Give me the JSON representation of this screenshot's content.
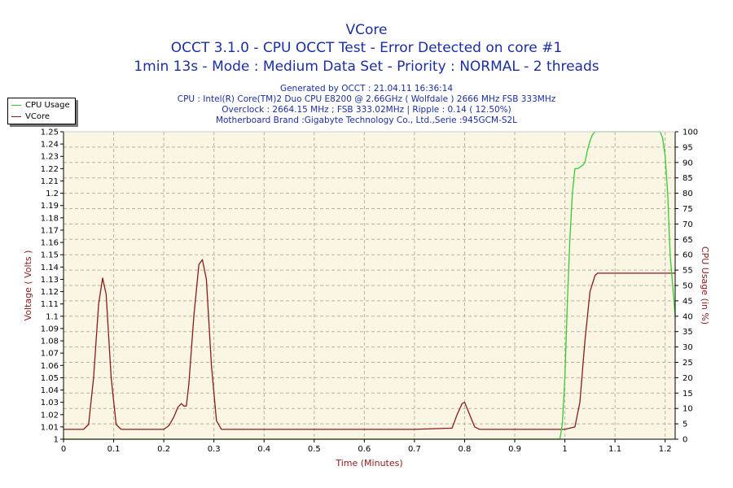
{
  "header": {
    "title": "VCore",
    "line2": "OCCT 3.1.0 - CPU OCCT Test - Error Detected on core #1",
    "line3": "1min 13s - Mode : Medium Data Set - Priority : NORMAL - 2 threads",
    "info": [
      "Generated by OCCT : 21.04.11 16:36:14",
      "CPU : Intel(R) Core(TM)2 Duo CPU E8200 @ 2.66GHz ( Wolfdale ) 2666 MHz FSB 333MHz",
      "Overclock : 2664.15 MHz ; FSB 333.02MHz | Ripple : 0.14 ( 12.50%)",
      "Motherboard Brand :Gigabyte Technology Co., Ltd.,Serie :945GCM-S2L"
    ]
  },
  "legend": {
    "items": [
      {
        "label": "CPU Usage",
        "color": "#33cc33"
      },
      {
        "label": "VCore",
        "color": "#8b1a1a"
      }
    ]
  },
  "colors": {
    "plot_bg": "#fbf6e3",
    "grid": "#b5b39a",
    "cpu_line": "#33cc33",
    "vcore_line": "#8b1a1a",
    "axis_title": "#8b1a1a"
  },
  "chart_data": {
    "type": "line",
    "xlabel": "Time (Minutes)",
    "ylabel": "Voltage ( Volts )",
    "y2label": "CPU Usage (in %)",
    "xlim": [
      0,
      1.22
    ],
    "ylim": [
      1.0,
      1.25
    ],
    "y2lim": [
      0,
      100
    ],
    "xticks": [
      "0",
      "0.1",
      "0.2",
      "0.3",
      "0.4",
      "0.5",
      "0.6",
      "0.7",
      "0.8",
      "0.9",
      "1",
      "1.1",
      "1.2"
    ],
    "yticks": [
      "1",
      "1.01",
      "1.02",
      "1.03",
      "1.04",
      "1.05",
      "1.06",
      "1.07",
      "1.08",
      "1.09",
      "1.1",
      "1.11",
      "1.12",
      "1.13",
      "1.14",
      "1.15",
      "1.16",
      "1.17",
      "1.18",
      "1.19",
      "1.2",
      "1.21",
      "1.22",
      "1.23",
      "1.24",
      "1.25"
    ],
    "y2ticks": [
      "0",
      "5",
      "10",
      "15",
      "20",
      "25",
      "30",
      "35",
      "40",
      "45",
      "50",
      "55",
      "60",
      "65",
      "70",
      "75",
      "80",
      "85",
      "90",
      "95",
      "100"
    ],
    "grid": true,
    "legend_position": "top-left",
    "series": [
      {
        "name": "VCore",
        "axis": "left",
        "x": [
          0,
          0.04,
          0.05,
          0.06,
          0.07,
          0.078,
          0.085,
          0.095,
          0.105,
          0.115,
          0.13,
          0.2,
          0.21,
          0.22,
          0.228,
          0.235,
          0.24,
          0.245,
          0.25,
          0.26,
          0.27,
          0.277,
          0.285,
          0.295,
          0.305,
          0.315,
          0.33,
          0.5,
          0.7,
          0.775,
          0.785,
          0.795,
          0.8,
          0.81,
          0.82,
          0.83,
          0.9,
          1.0,
          1.02,
          1.03,
          1.04,
          1.05,
          1.06,
          1.065,
          1.1,
          1.2,
          1.22
        ],
        "y": [
          1.008,
          1.008,
          1.012,
          1.05,
          1.11,
          1.131,
          1.118,
          1.05,
          1.012,
          1.008,
          1.008,
          1.008,
          1.011,
          1.018,
          1.026,
          1.029,
          1.027,
          1.027,
          1.045,
          1.1,
          1.142,
          1.146,
          1.13,
          1.06,
          1.015,
          1.008,
          1.008,
          1.008,
          1.008,
          1.009,
          1.02,
          1.029,
          1.03,
          1.02,
          1.01,
          1.008,
          1.008,
          1.008,
          1.01,
          1.03,
          1.08,
          1.12,
          1.133,
          1.135,
          1.135,
          1.135,
          1.135
        ]
      },
      {
        "name": "CPU Usage",
        "axis": "right",
        "x": [
          0,
          0.99,
          0.995,
          1.0,
          1.005,
          1.01,
          1.015,
          1.02,
          1.025,
          1.035,
          1.04,
          1.045,
          1.05,
          1.055,
          1.06,
          1.07,
          1.19,
          1.195,
          1.2,
          1.205,
          1.21,
          1.22
        ],
        "y": [
          0,
          0,
          5,
          20,
          45,
          65,
          80,
          88,
          88,
          89,
          90,
          94,
          97,
          99,
          100,
          100,
          100,
          98,
          92,
          80,
          60,
          40
        ]
      }
    ]
  }
}
